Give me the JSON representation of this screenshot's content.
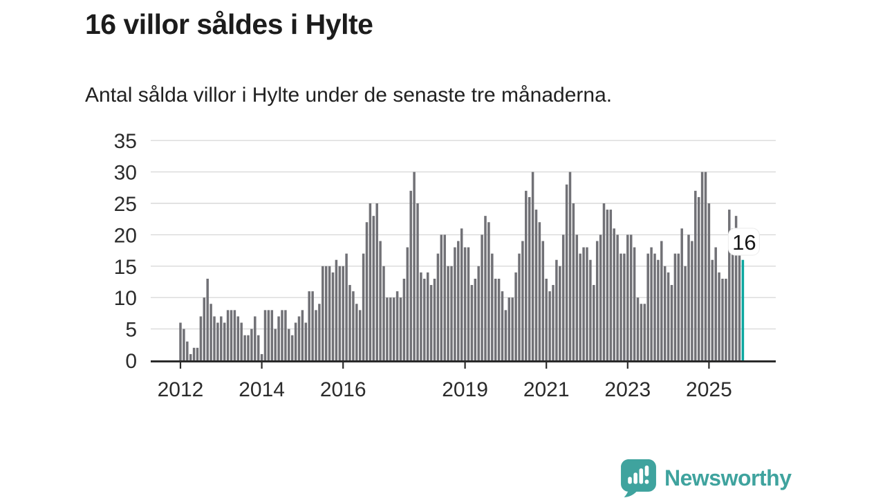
{
  "header": {
    "title": "16 villor såldes i Hylte",
    "subtitle": "Antal sålda villor i Hylte under de senaste tre månaderna."
  },
  "chart_data": {
    "type": "bar",
    "title": "16 villor såldes i Hylte",
    "subtitle": "Antal sålda villor i Hylte under de senaste tre månaderna.",
    "frequency": "monthly",
    "x_start": "2012-01",
    "x_end": "2025-11",
    "values": [
      6,
      5,
      3,
      1,
      2,
      2,
      7,
      10,
      13,
      9,
      7,
      6,
      7,
      6,
      8,
      8,
      8,
      7,
      6,
      4,
      4,
      5,
      7,
      4,
      1,
      8,
      8,
      8,
      5,
      7,
      8,
      8,
      5,
      4,
      6,
      7,
      8,
      6,
      11,
      11,
      8,
      9,
      15,
      15,
      15,
      14,
      16,
      15,
      15,
      17,
      12,
      11,
      9,
      8,
      17,
      22,
      25,
      23,
      25,
      19,
      15,
      10,
      10,
      10,
      11,
      10,
      13,
      18,
      27,
      30,
      25,
      14,
      13,
      14,
      12,
      13,
      17,
      20,
      20,
      15,
      15,
      18,
      19,
      21,
      18,
      18,
      12,
      13,
      15,
      20,
      23,
      22,
      17,
      13,
      13,
      11,
      8,
      10,
      10,
      14,
      17,
      19,
      27,
      26,
      30,
      24,
      22,
      19,
      13,
      11,
      12,
      16,
      15,
      20,
      28,
      30,
      25,
      20,
      17,
      18,
      18,
      16,
      12,
      19,
      20,
      25,
      24,
      24,
      21,
      20,
      17,
      17,
      20,
      20,
      18,
      10,
      9,
      9,
      17,
      18,
      17,
      16,
      19,
      15,
      14,
      12,
      17,
      17,
      21,
      15,
      20,
      19,
      27,
      26,
      30,
      30,
      25,
      16,
      18,
      14,
      13,
      13,
      24,
      21,
      23,
      17,
      16
    ],
    "highlight_last": true,
    "highlight_value": 16,
    "highlight_label": "16",
    "ylim": [
      0,
      35
    ],
    "y_ticks": [
      0,
      5,
      10,
      15,
      20,
      25,
      30,
      35
    ],
    "x_ticks": [
      {
        "label": "2012",
        "month_index": 0
      },
      {
        "label": "2014",
        "month_index": 24
      },
      {
        "label": "2016",
        "month_index": 48
      },
      {
        "label": "2019",
        "month_index": 84
      },
      {
        "label": "2021",
        "month_index": 108
      },
      {
        "label": "2023",
        "month_index": 132
      },
      {
        "label": "2025",
        "month_index": 156
      }
    ],
    "grid": true,
    "legend": false,
    "colors": {
      "bar": "#717176",
      "highlight": "#0ca7a0",
      "grid": "#d9d9d9",
      "axis": "#2a2a2a",
      "tick_text": "#2b2b2b",
      "annotation_text": "#161616"
    }
  },
  "footer": {
    "brand": "Newsworthy",
    "brand_color": "#3fa39e",
    "logo_icon": "bar-chart-speech-bubble-icon"
  }
}
